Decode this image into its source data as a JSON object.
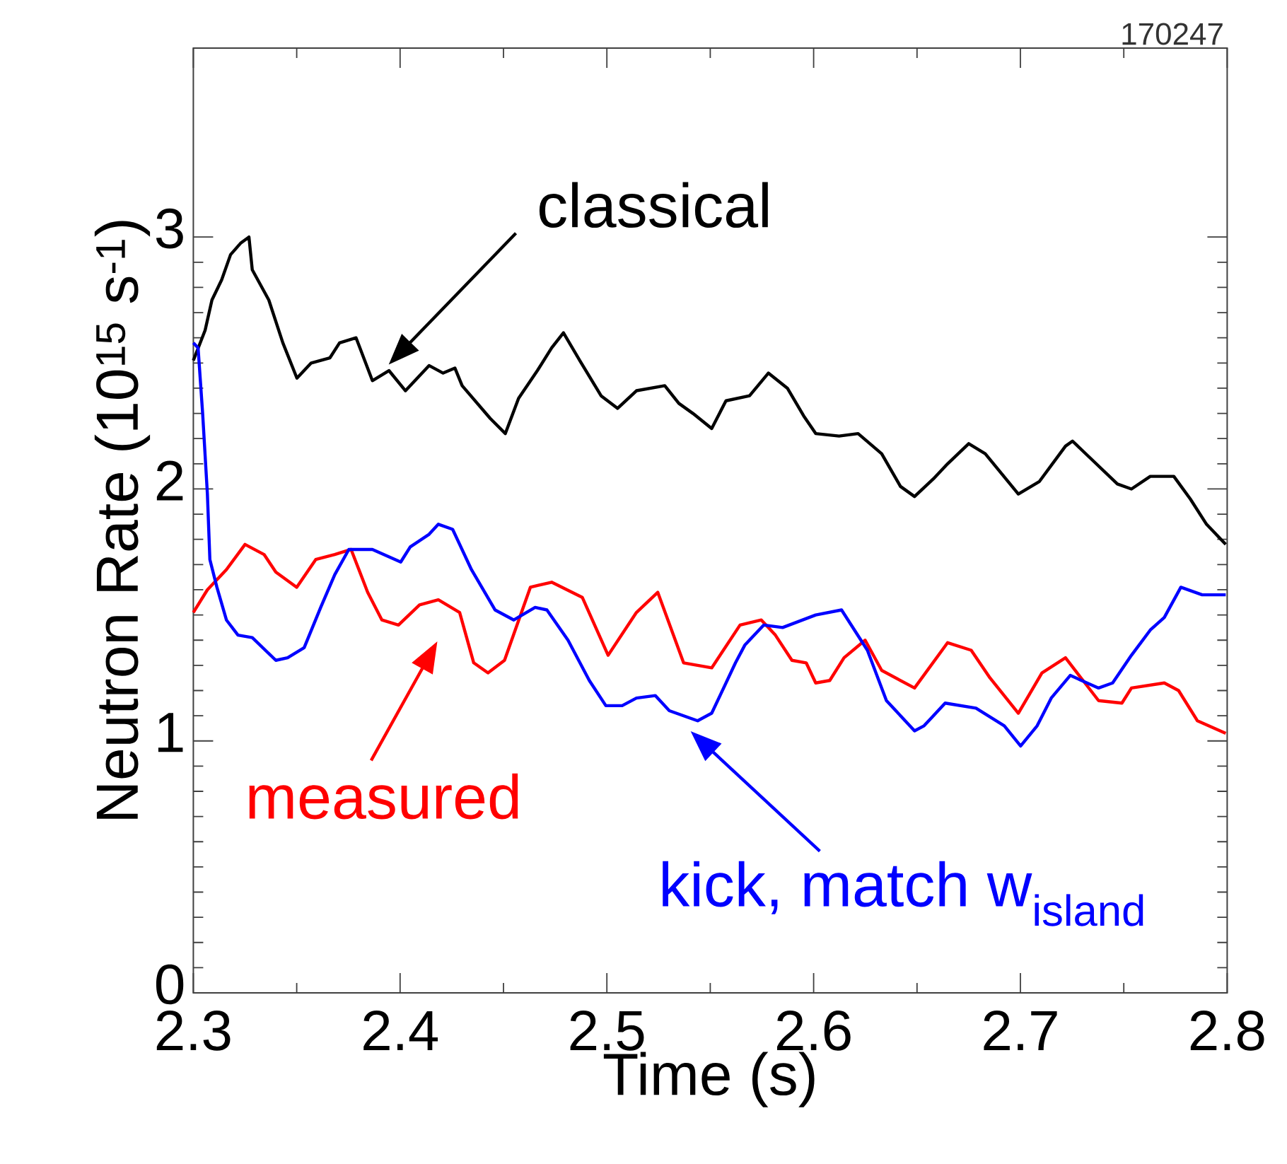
{
  "chart_data": {
    "type": "line",
    "xlabel": "Time (s)",
    "ylabel": "Neutron Rate (10$^{15}$ s$^{-1}$)",
    "xlim": [
      2.3,
      2.8
    ],
    "ylim": [
      0,
      3.75
    ],
    "xticks": [
      2.3,
      2.4,
      2.5,
      2.6,
      2.7,
      2.8
    ],
    "yticks": [
      0,
      1,
      2,
      3
    ],
    "series": [
      {
        "color": "#000000",
        "x": [
          2.3,
          2.3057,
          2.309,
          2.3137,
          2.318,
          2.3228,
          2.3269,
          2.3285,
          2.3365,
          2.3433,
          2.3501,
          2.357,
          2.366,
          2.3707,
          2.3787,
          2.3866,
          2.3946,
          2.4026,
          2.414,
          2.4208,
          2.4265,
          2.43,
          2.4436,
          2.4509,
          2.4573,
          2.4664,
          2.4733,
          2.479,
          2.4869,
          2.4972,
          2.5052,
          2.5143,
          2.528,
          2.5348,
          2.5416,
          2.5507,
          2.5576,
          2.569,
          2.5781,
          2.5873,
          2.5952,
          2.601,
          2.6123,
          2.6215,
          2.6329,
          2.642,
          2.6488,
          2.6579,
          2.6648,
          2.675,
          2.683,
          2.699,
          2.7092,
          2.7218,
          2.7252,
          2.7354,
          2.7469,
          2.7537,
          2.7628,
          2.7742,
          2.7822,
          2.79,
          2.7993
        ],
        "values": [
          2.51,
          2.63,
          2.75,
          2.83,
          2.93,
          2.975,
          3.0,
          2.87,
          2.75,
          2.58,
          2.44,
          2.5,
          2.52,
          2.58,
          2.6,
          2.43,
          2.47,
          2.39,
          2.49,
          2.46,
          2.48,
          2.41,
          2.28,
          2.22,
          2.36,
          2.47,
          2.56,
          2.62,
          2.51,
          2.37,
          2.32,
          2.39,
          2.41,
          2.34,
          2.3,
          2.24,
          2.35,
          2.37,
          2.46,
          2.4,
          2.29,
          2.22,
          2.21,
          2.22,
          2.14,
          2.01,
          1.97,
          2.04,
          2.1,
          2.18,
          2.14,
          1.98,
          2.03,
          2.17,
          2.19,
          2.11,
          2.02,
          2.0,
          2.05,
          2.05,
          1.96,
          1.86,
          1.78
        ]
      },
      {
        "color": "#ff0000",
        "x": [
          2.3,
          2.3068,
          2.316,
          2.325,
          2.3342,
          2.3399,
          2.35,
          2.3592,
          2.3684,
          2.3763,
          2.3843,
          2.3912,
          2.3992,
          2.4094,
          2.4185,
          2.4288,
          2.4356,
          2.4425,
          2.4505,
          2.463,
          2.4733,
          2.4881,
          2.5006,
          2.5143,
          2.5246,
          2.5371,
          2.5507,
          2.5644,
          2.5747,
          2.5815,
          2.5895,
          2.5964,
          2.601,
          2.6078,
          2.6147,
          2.6249,
          2.6329,
          2.6488,
          2.6648,
          2.6762,
          2.6853,
          2.699,
          2.7104,
          2.7218,
          2.7378,
          2.7491,
          2.7537,
          2.7696,
          2.7765,
          2.7856,
          2.7993
        ],
        "values": [
          1.51,
          1.6,
          1.68,
          1.78,
          1.74,
          1.67,
          1.61,
          1.72,
          1.74,
          1.76,
          1.59,
          1.48,
          1.46,
          1.54,
          1.56,
          1.51,
          1.31,
          1.27,
          1.32,
          1.61,
          1.63,
          1.57,
          1.34,
          1.51,
          1.59,
          1.31,
          1.29,
          1.46,
          1.48,
          1.42,
          1.32,
          1.31,
          1.23,
          1.24,
          1.33,
          1.4,
          1.28,
          1.21,
          1.39,
          1.36,
          1.25,
          1.11,
          1.27,
          1.33,
          1.16,
          1.15,
          1.21,
          1.23,
          1.2,
          1.08,
          1.03
        ]
      },
      {
        "color": "#0000ff",
        "x": [
          2.3,
          2.3023,
          2.3045,
          2.3068,
          2.308,
          2.3114,
          2.316,
          2.3216,
          2.3285,
          2.3399,
          2.3456,
          2.3536,
          2.3616,
          2.3684,
          2.3752,
          2.3866,
          2.4003,
          2.4049,
          2.414,
          2.4185,
          2.4254,
          2.4345,
          2.4459,
          2.455,
          2.4653,
          2.471,
          2.4812,
          2.4915,
          2.4995,
          2.5074,
          2.5143,
          2.5234,
          2.5302,
          2.5439,
          2.5507,
          2.5622,
          2.5667,
          2.5759,
          2.585,
          2.601,
          2.6135,
          2.626,
          2.6352,
          2.6488,
          2.6534,
          2.6636,
          2.6785,
          2.6922,
          2.7001,
          2.7081,
          2.7149,
          2.7241,
          2.7378,
          2.7446,
          2.7537,
          2.7628,
          2.7696,
          2.7776,
          2.7879,
          2.7993
        ],
        "values": [
          2.58,
          2.56,
          2.3,
          1.98,
          1.72,
          1.61,
          1.48,
          1.42,
          1.41,
          1.32,
          1.33,
          1.37,
          1.53,
          1.66,
          1.76,
          1.76,
          1.71,
          1.77,
          1.82,
          1.86,
          1.84,
          1.68,
          1.52,
          1.48,
          1.53,
          1.52,
          1.4,
          1.24,
          1.14,
          1.14,
          1.17,
          1.18,
          1.12,
          1.08,
          1.11,
          1.31,
          1.38,
          1.46,
          1.45,
          1.5,
          1.52,
          1.36,
          1.16,
          1.04,
          1.06,
          1.15,
          1.13,
          1.06,
          0.98,
          1.06,
          1.17,
          1.26,
          1.21,
          1.23,
          1.34,
          1.44,
          1.49,
          1.61,
          1.58,
          1.58
        ]
      }
    ],
    "annotations": [
      "classical",
      "measured",
      "kick, match w$_{island}$",
      "170247"
    ]
  }
}
